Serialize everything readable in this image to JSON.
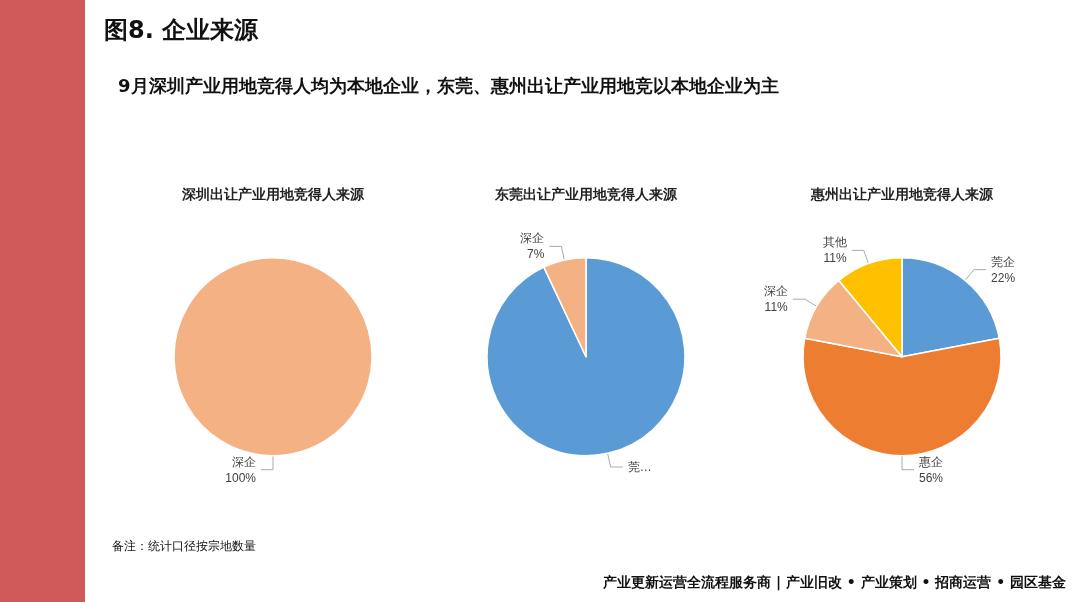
{
  "chart_data": [
    {
      "type": "pie",
      "title": "深圳出让产业用地竞得人来源",
      "categories": [
        "深企"
      ],
      "values": [
        100
      ],
      "colors": [
        "#f4b183"
      ],
      "value_labels": [
        "100%"
      ],
      "annotations": [
        "图8. 企业来源",
        "9月深圳产业用地竞得人均为本地企业，东莞、惠州出让产业用地竞以本地企业为主",
        "备注：统计口径按宗地数量",
        "产业更新运营全流程服务商  |  产业旧改 • 产业策划 • 招商运营 • 园区基金"
      ]
    },
    {
      "type": "pie",
      "title": "东莞出让产业用地竞得人来源",
      "categories": [
        "莞…",
        "深企"
      ],
      "values": [
        93,
        7
      ],
      "colors": [
        "#5b9bd5",
        "#f4b183"
      ],
      "value_labels": [
        null,
        "7%"
      ]
    },
    {
      "type": "pie",
      "title": "惠州出让产业用地竞得人来源",
      "categories": [
        "莞企",
        "惠企",
        "深企",
        "其他"
      ],
      "values": [
        22,
        56,
        11,
        11
      ],
      "colors": [
        "#5b9bd5",
        "#ed7d31",
        "#f4b183",
        "#ffc000"
      ],
      "value_labels": [
        "22%",
        "56%",
        "11%",
        "11%"
      ]
    }
  ]
}
